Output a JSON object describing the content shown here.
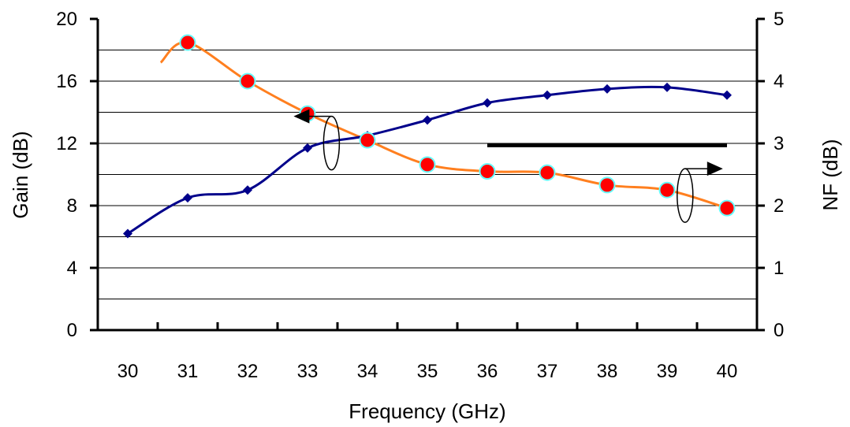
{
  "chart_data": {
    "type": "line",
    "xlabel": "Frequency (GHz)",
    "ylabel_left": "Gain (dB)",
    "ylabel_right": "NF (dB)",
    "x_categories": [
      "30",
      "31",
      "32",
      "33",
      "34",
      "35",
      "36",
      "37",
      "38",
      "39",
      "40"
    ],
    "y_left_ticks": [
      "0",
      "4",
      "8",
      "12",
      "16",
      "20"
    ],
    "y_right_ticks": [
      "0",
      "1",
      "2",
      "3",
      "4",
      "5"
    ],
    "ylim_left": [
      0,
      20
    ],
    "ylim_right": [
      0,
      5
    ],
    "xlim": [
      29.5,
      40.5
    ],
    "grid": "horizontal",
    "series": [
      {
        "axis": "left",
        "color": "#00008B",
        "marker": "diamond",
        "x": [
          30,
          31,
          32,
          33,
          34,
          35,
          36,
          37,
          38,
          39,
          40
        ],
        "values": [
          6.2,
          8.5,
          9.0,
          11.7,
          12.5,
          13.5,
          14.6,
          15.1,
          15.5,
          15.6,
          15.1
        ]
      },
      {
        "axis": "right",
        "color": "#FF7F1F",
        "marker": "circle",
        "marker_fill": "#FF0000",
        "marker_edge": "#66FFFF",
        "x": [
          31,
          32,
          33,
          34,
          35,
          36,
          37,
          38,
          39,
          40
        ],
        "values": [
          4.62,
          4.0,
          3.48,
          3.05,
          2.66,
          2.55,
          2.53,
          2.33,
          2.25,
          1.96
        ]
      }
    ],
    "annotations": [
      {
        "type": "arrow",
        "target_axis": "left",
        "direction": "left",
        "attached_to_series": 0,
        "near_x": 33.4
      },
      {
        "type": "arrow",
        "target_axis": "right",
        "direction": "right",
        "attached_to_series": 1,
        "near_x": 39.3
      },
      {
        "type": "horizontal-line",
        "axis": "right",
        "y": 2.97,
        "x_from": 36.0,
        "x_to": 40.0
      }
    ]
  }
}
